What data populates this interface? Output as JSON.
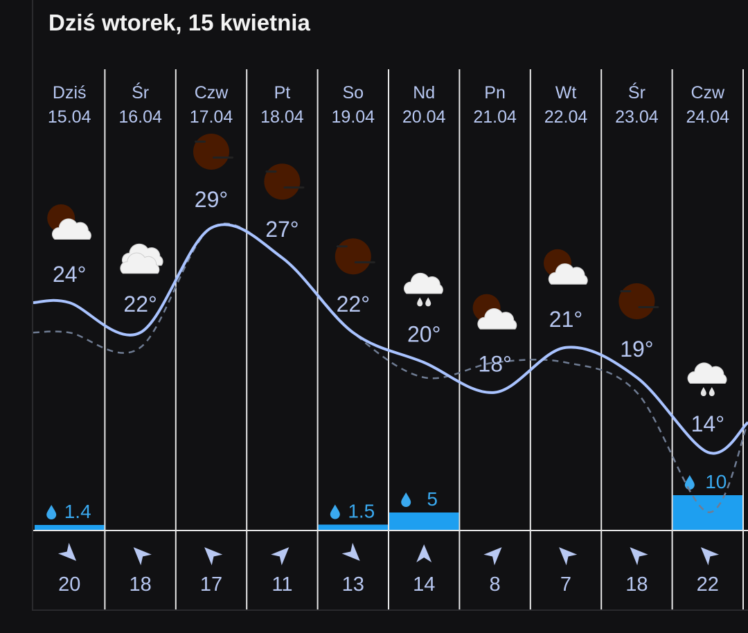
{
  "header": {
    "title": "Dziś wtorek, 15 kwietnia"
  },
  "colors": {
    "background": "#111113",
    "text_label": "#b8c8f2",
    "temp_line": "#a9c3ff",
    "feels_line": "#6f7c93",
    "precip_bar": "#1e9ff0",
    "precip_text": "#3aa9ef",
    "separator": "#e8e8e8",
    "moon": "#4a1a00",
    "cloud": "#f2f2f2"
  },
  "chart_data": {
    "type": "line",
    "days": [
      {
        "dow": "Dziś",
        "date": "15.04",
        "temp": 24,
        "temp_label": "24°",
        "feels": 22,
        "precip": 1.4,
        "precip_label": "1.4",
        "icon": "moon-cloud-icon",
        "wind": 20,
        "wind_dir": "south-east"
      },
      {
        "dow": "Śr",
        "date": "16.04",
        "temp": 22,
        "temp_label": "22°",
        "feels": 21,
        "precip": 0,
        "precip_label": "",
        "icon": "cloudy-icon",
        "wind": 18,
        "wind_dir": "north-west"
      },
      {
        "dow": "Czw",
        "date": "17.04",
        "temp": 29,
        "temp_label": "29°",
        "feels": 29,
        "precip": 0,
        "precip_label": "",
        "icon": "moon-haze-icon",
        "wind": 17,
        "wind_dir": "north-west"
      },
      {
        "dow": "Pt",
        "date": "18.04",
        "temp": 27,
        "temp_label": "27°",
        "feels": 27,
        "precip": 0,
        "precip_label": "",
        "icon": "moon-haze-icon",
        "wind": 11,
        "wind_dir": "north-east"
      },
      {
        "dow": "So",
        "date": "19.04",
        "temp": 22,
        "temp_label": "22°",
        "feels": 22,
        "precip": 1.5,
        "precip_label": "1.5",
        "icon": "moon-haze-icon",
        "wind": 13,
        "wind_dir": "south-east"
      },
      {
        "dow": "Nd",
        "date": "20.04",
        "temp": 20,
        "temp_label": "20°",
        "feels": 19,
        "precip": 5,
        "precip_label": "5",
        "icon": "rain-cloud-icon",
        "wind": 14,
        "wind_dir": "north"
      },
      {
        "dow": "Pn",
        "date": "21.04",
        "temp": 18,
        "temp_label": "18°",
        "feels": 20,
        "precip": 0,
        "precip_label": "",
        "icon": "moon-cloud-icon",
        "wind": 8,
        "wind_dir": "north-east"
      },
      {
        "dow": "Wt",
        "date": "22.04",
        "temp": 21,
        "temp_label": "21°",
        "feels": 20,
        "precip": 0,
        "precip_label": "",
        "icon": "moon-cloud-icon",
        "wind": 7,
        "wind_dir": "north-west"
      },
      {
        "dow": "Śr",
        "date": "23.04",
        "temp": 19,
        "temp_label": "19°",
        "feels": 18,
        "precip": 0,
        "precip_label": "",
        "icon": "moon-haze-icon",
        "wind": 18,
        "wind_dir": "north-west"
      },
      {
        "dow": "Czw",
        "date": "24.04",
        "temp": 14,
        "temp_label": "14°",
        "feels": 10,
        "precip": 10,
        "precip_label": "10",
        "icon": "rain-cloud-icon",
        "wind": 22,
        "wind_dir": "north-west"
      }
    ],
    "next_temp": 16,
    "grid": false,
    "legend": "none"
  }
}
